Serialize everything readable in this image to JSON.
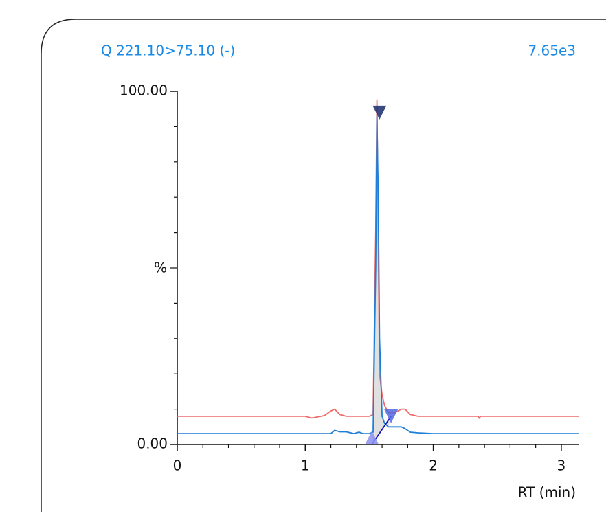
{
  "chart_data": {
    "type": "line",
    "title": "Q 221.10>75.10 (-)",
    "intensity": "7.65e3",
    "x_label": "RT (min)",
    "y_label": "%",
    "x": [
      0,
      1.0,
      1.05,
      1.15,
      1.2,
      1.23,
      1.27,
      1.32,
      1.38,
      1.42,
      1.45,
      1.5,
      1.53,
      1.55,
      1.56,
      1.57,
      1.58,
      1.6,
      1.62,
      1.65,
      1.7,
      1.75,
      1.78,
      1.82,
      1.88,
      2.0,
      2.35,
      2.36,
      2.37,
      3.14
    ],
    "series": [
      {
        "color": "#f06a6a",
        "values": [
          8,
          8,
          7.5,
          8.2,
          9.5,
          10,
          8.5,
          8,
          8,
          8,
          8,
          8,
          8.5,
          60,
          97.7,
          60,
          20,
          14,
          11,
          9,
          9,
          10,
          10,
          8.5,
          8,
          8,
          8,
          7.5,
          8,
          8
        ]
      },
      {
        "color": "#1f7fd6",
        "values": [
          3.1,
          3.1,
          3.1,
          3.1,
          3.1,
          4,
          3.6,
          3.6,
          3.1,
          3.5,
          3.1,
          3.1,
          3.5,
          50,
          93,
          70,
          30,
          8,
          6,
          5,
          5,
          5,
          4.5,
          3.5,
          3.3,
          3.1,
          3.1,
          3.1,
          3.1,
          3.1
        ]
      }
    ],
    "peak": {
      "start": [
        1.52,
        0
      ],
      "apex": [
        1.58,
        94
      ],
      "end": [
        1.67,
        8
      ]
    },
    "xlim": [
      0,
      3.14
    ],
    "ylim": [
      0,
      100
    ],
    "xticks": [
      0,
      1,
      2,
      3
    ],
    "yticks": [
      {
        "value": 0,
        "label": "0.00"
      },
      {
        "value": 100,
        "label": "100.00"
      }
    ],
    "xminorticks": [
      0.2,
      0.4,
      0.6,
      0.8,
      1.2,
      1.4,
      1.6,
      1.8,
      2.2,
      2.4,
      2.6,
      2.8,
      3.0
    ],
    "yminorticks": [
      10,
      20,
      30,
      40,
      50,
      60,
      70,
      80,
      90
    ]
  }
}
